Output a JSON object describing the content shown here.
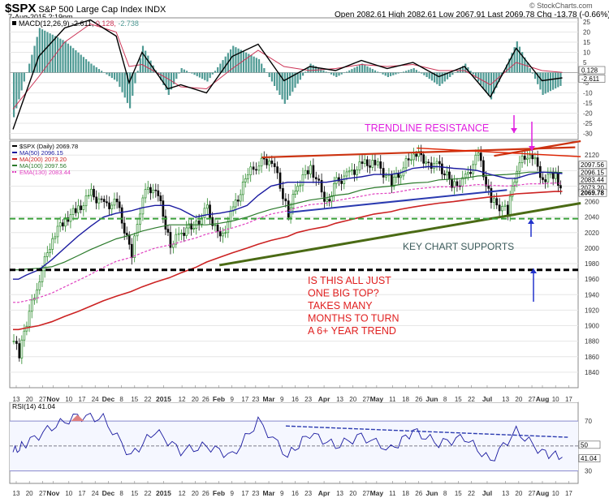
{
  "header": {
    "symbol": "$SPX",
    "name": "S&P 500 Large Cap Index",
    "exchange": "INDX",
    "datetime": "7-Aug-2015 2:19pm",
    "quote": "Open 2082.61  High 2082.61  Low 2067.91  Last 2069.78  Chg -13.78 (-0.66%)",
    "copyright": "© StockCharts.com"
  },
  "macd": {
    "label": "MACD(12,26,9)",
    "macd_val": "-2.611",
    "signal_val": "0.128",
    "hist_val": "-2.738",
    "ticks": [
      "25",
      "20",
      "15",
      "10",
      "5",
      "0",
      "-5",
      "-10",
      "-15",
      "-20",
      "-25",
      "-30"
    ],
    "tick_values": [
      25,
      20,
      15,
      10,
      5,
      0,
      -5,
      -10,
      -15,
      -20,
      -25,
      -30
    ],
    "badges": [
      "0.128",
      "-2.611"
    ],
    "colors": {
      "macd": "#000000",
      "signal": "#cc3355",
      "hist": "#4f9a94"
    }
  },
  "price_legend": [
    {
      "text": "$SPX (Daily) 2069.78",
      "color": "#000000"
    },
    {
      "text": "MA(50) 2096.15",
      "color": "#1a1aa0"
    },
    {
      "text": "MA(200) 2073.20",
      "color": "#cc2222"
    },
    {
      "text": "MA(100) 2097.56",
      "color": "#2b7a2b"
    },
    {
      "text": "EMA(130) 2083.44",
      "color": "#e040c0"
    }
  ],
  "price_axis": {
    "ticks": [
      "2120",
      "2100",
      "2080",
      "2060",
      "2040",
      "2020",
      "2000",
      "1980",
      "1960",
      "1940",
      "1920",
      "1900",
      "1880",
      "1860",
      "1840"
    ],
    "tick_values": [
      2120,
      2100,
      2080,
      2060,
      2040,
      2020,
      2000,
      1980,
      1960,
      1940,
      1920,
      1900,
      1880,
      1860,
      1840
    ],
    "badges": [
      {
        "text": "2097.56",
        "value": 2097.56,
        "fill": "#ffffff",
        "color": "#000000"
      },
      {
        "text": "2096.15",
        "value": 2096.15,
        "fill": "#ffffff",
        "color": "#000000"
      },
      {
        "text": "2083.44",
        "value": 2083.44,
        "fill": "#ffffff",
        "color": "#000000"
      },
      {
        "text": "2073.20",
        "value": 2073.2,
        "fill": "#ffffff",
        "color": "#000000"
      },
      {
        "text": "2069.78",
        "value": 2069.78,
        "fill": "#ffffff",
        "color": "#000000"
      }
    ]
  },
  "annotations": {
    "trendline_resistance": "TRENDLINE RESISTANCE",
    "key_supports": "KEY CHART SUPPORTS",
    "big_top": [
      "IS THIS ALL JUST",
      "ONE BIG TOP?",
      "TAKES MANY",
      "MONTHS TO TURN",
      "A 6+ YEAR TREND"
    ]
  },
  "x_axis": {
    "labels": [
      {
        "t": "13",
        "d": 0
      },
      {
        "t": "20",
        "d": 5
      },
      {
        "t": "27",
        "d": 10
      },
      {
        "t": "Nov",
        "d": 14,
        "b": true
      },
      {
        "t": "10",
        "d": 20
      },
      {
        "t": "17",
        "d": 25
      },
      {
        "t": "24",
        "d": 30
      },
      {
        "t": "Dec",
        "d": 35,
        "b": true
      },
      {
        "t": "8",
        "d": 40
      },
      {
        "t": "15",
        "d": 45
      },
      {
        "t": "22",
        "d": 50
      },
      {
        "t": "2015",
        "d": 56,
        "b": true
      },
      {
        "t": "12",
        "d": 63
      },
      {
        "t": "20",
        "d": 68
      },
      {
        "t": "26",
        "d": 72
      },
      {
        "t": "Feb",
        "d": 77,
        "b": true
      },
      {
        "t": "9",
        "d": 82
      },
      {
        "t": "17",
        "d": 87
      },
      {
        "t": "23",
        "d": 91
      },
      {
        "t": "Mar",
        "d": 96,
        "b": true
      },
      {
        "t": "9",
        "d": 101
      },
      {
        "t": "16",
        "d": 106
      },
      {
        "t": "23",
        "d": 111
      },
      {
        "t": "Apr",
        "d": 117,
        "b": true
      },
      {
        "t": "13",
        "d": 123
      },
      {
        "t": "20",
        "d": 128
      },
      {
        "t": "27",
        "d": 133
      },
      {
        "t": "May",
        "d": 137,
        "b": true
      },
      {
        "t": "11",
        "d": 143
      },
      {
        "t": "18",
        "d": 148
      },
      {
        "t": "26",
        "d": 153
      },
      {
        "t": "Jun",
        "d": 158,
        "b": true
      },
      {
        "t": "8",
        "d": 163
      },
      {
        "t": "15",
        "d": 168
      },
      {
        "t": "22",
        "d": 173
      },
      {
        "t": "Jul",
        "d": 179,
        "b": true
      },
      {
        "t": "13",
        "d": 186
      },
      {
        "t": "20",
        "d": 191
      },
      {
        "t": "27",
        "d": 196
      },
      {
        "t": "Aug",
        "d": 200,
        "b": true
      },
      {
        "t": "10",
        "d": 205
      },
      {
        "t": "17",
        "d": 210
      }
    ]
  },
  "rsi": {
    "label": "RSI(14)",
    "value": "41.04",
    "ticks": [
      "70",
      "50",
      "30"
    ],
    "tick_values": [
      70,
      50,
      30
    ],
    "badges": [
      "50",
      "41.04"
    ]
  },
  "chart_data": [
    {
      "type": "bar",
      "name": "MACD histogram / MACD / signal",
      "x_dates": [
        "2014-10-13",
        "2014-10-27",
        "2014-11-10",
        "2014-11-24",
        "2014-12-08",
        "2014-12-15",
        "2014-12-22",
        "2015-01-05",
        "2015-01-12",
        "2015-01-26",
        "2015-02-09",
        "2015-02-23",
        "2015-03-09",
        "2015-03-23",
        "2015-04-06",
        "2015-04-20",
        "2015-05-04",
        "2015-05-18",
        "2015-06-01",
        "2015-06-15",
        "2015-06-29",
        "2015-07-13",
        "2015-07-27",
        "2015-08-07"
      ],
      "macd": [
        -28,
        8,
        22,
        26,
        18,
        -5,
        10,
        -8,
        -6,
        -10,
        8,
        14,
        -4,
        3,
        1,
        6,
        2,
        5,
        -2,
        3,
        -12,
        12,
        -4,
        -2.6
      ],
      "signal": [
        -18,
        -2,
        15,
        24,
        20,
        3,
        4,
        -3,
        -7,
        -8,
        2,
        11,
        3,
        1,
        2,
        4,
        3,
        4,
        1,
        1,
        -6,
        5,
        1,
        0.1
      ]
    },
    {
      "type": "line",
      "title": "$SPX (Daily) 2069.78",
      "ylim": [
        1820,
        2140
      ],
      "x_dates": [
        "2014-10-13",
        "2014-10-16",
        "2014-10-20",
        "2014-10-27",
        "2014-11-03",
        "2014-11-10",
        "2014-11-17",
        "2014-11-24",
        "2014-12-01",
        "2014-12-08",
        "2014-12-16",
        "2014-12-22",
        "2014-12-29",
        "2015-01-06",
        "2015-01-12",
        "2015-01-20",
        "2015-01-26",
        "2015-02-02",
        "2015-02-09",
        "2015-02-17",
        "2015-02-23",
        "2015-03-02",
        "2015-03-11",
        "2015-03-16",
        "2015-03-23",
        "2015-04-01",
        "2015-04-06",
        "2015-04-13",
        "2015-04-20",
        "2015-04-27",
        "2015-05-06",
        "2015-05-11",
        "2015-05-18",
        "2015-05-26",
        "2015-06-01",
        "2015-06-09",
        "2015-06-15",
        "2015-06-22",
        "2015-06-29",
        "2015-07-08",
        "2015-07-13",
        "2015-07-20",
        "2015-07-27",
        "2015-08-03",
        "2015-08-07"
      ],
      "close": [
        1880,
        1862,
        1905,
        1962,
        2015,
        2038,
        2050,
        2070,
        2055,
        2058,
        1990,
        2070,
        2080,
        2005,
        2020,
        2032,
        2050,
        2010,
        2050,
        2095,
        2110,
        2115,
        2045,
        2082,
        2105,
        2058,
        2085,
        2095,
        2108,
        2110,
        2085,
        2099,
        2125,
        2110,
        2105,
        2080,
        2090,
        2120,
        2060,
        2048,
        2105,
        2125,
        2090,
        2095,
        2069.78
      ],
      "ma50": [
        1960,
        1960,
        1965,
        1972,
        1985,
        2000,
        2015,
        2028,
        2040,
        2045,
        2048,
        2052,
        2055,
        2055,
        2050,
        2040,
        2043,
        2045,
        2048,
        2055,
        2068,
        2080,
        2085,
        2085,
        2085,
        2085,
        2087,
        2090,
        2092,
        2095,
        2095,
        2097,
        2103,
        2105,
        2105,
        2103,
        2102,
        2100,
        2095,
        2090,
        2090,
        2095,
        2098,
        2097,
        2096.15
      ],
      "ma100": [
        1972,
        1972,
        1973,
        1974,
        1976,
        1982,
        1990,
        1998,
        2005,
        2012,
        2017,
        2022,
        2026,
        2030,
        2030,
        2030,
        2030,
        2032,
        2035,
        2040,
        2045,
        2050,
        2055,
        2058,
        2062,
        2065,
        2068,
        2070,
        2075,
        2078,
        2080,
        2082,
        2084,
        2085,
        2088,
        2089,
        2090,
        2093,
        2094,
        2095,
        2096,
        2098,
        2098,
        2098,
        2097.56
      ],
      "ma200": [
        1895,
        1895,
        1897,
        1900,
        1905,
        1912,
        1918,
        1925,
        1932,
        1938,
        1944,
        1950,
        1956,
        1962,
        1968,
        1975,
        1982,
        1988,
        1994,
        2000,
        2005,
        2010,
        2015,
        2020,
        2024,
        2028,
        2032,
        2036,
        2040,
        2044,
        2047,
        2050,
        2053,
        2056,
        2058,
        2060,
        2062,
        2064,
        2066,
        2068,
        2070,
        2071,
        2072,
        2073,
        2073.2
      ],
      "ema130": [
        1930,
        1930,
        1932,
        1936,
        1942,
        1950,
        1958,
        1966,
        1975,
        1983,
        1988,
        1994,
        2000,
        2004,
        2008,
        2013,
        2018,
        2022,
        2026,
        2032,
        2038,
        2044,
        2048,
        2052,
        2056,
        2058,
        2061,
        2064,
        2067,
        2070,
        2071,
        2073,
        2076,
        2078,
        2079,
        2079,
        2080,
        2082,
        2081,
        2080,
        2081,
        2083,
        2083,
        2084,
        2083.44
      ],
      "trendlines": {
        "resistance": {
          "from": [
            "2015-02-25",
            2117
          ],
          "to": [
            "2015-08-14",
            2130
          ]
        },
        "resistance_upper": {
          "from": [
            "2015-07-01",
            2119
          ],
          "to": [
            "2015-08-17",
            2138
          ]
        },
        "resistance_lower": {
          "from": [
            "2015-05-20",
            2129
          ],
          "to": [
            "2015-08-17",
            2118
          ]
        },
        "support_blue": {
          "from": [
            "2015-03-11",
            2046
          ],
          "to": [
            "2015-07-08",
            2075
          ]
        },
        "support_green": {
          "from": [
            "2015-02-02",
            1978
          ],
          "to": [
            "2015-08-17",
            2058
          ]
        },
        "horizontal_green": 2038,
        "horizontal_black": 1972
      }
    },
    {
      "type": "line",
      "title": "RSI(14) 41.04",
      "ylim": [
        20,
        85
      ],
      "x_dates": [
        "2014-10-13",
        "2014-10-20",
        "2014-11-03",
        "2014-11-17",
        "2014-12-01",
        "2014-12-16",
        "2014-12-29",
        "2015-01-12",
        "2015-01-26",
        "2015-02-09",
        "2015-02-23",
        "2015-03-11",
        "2015-03-23",
        "2015-04-06",
        "2015-04-20",
        "2015-05-06",
        "2015-05-18",
        "2015-06-01",
        "2015-06-15",
        "2015-06-29",
        "2015-07-13",
        "2015-07-27",
        "2015-08-07"
      ],
      "values": [
        45,
        52,
        65,
        74,
        72,
        42,
        62,
        46,
        50,
        42,
        70,
        42,
        60,
        50,
        58,
        47,
        62,
        52,
        57,
        38,
        62,
        45,
        41.04
      ]
    }
  ]
}
